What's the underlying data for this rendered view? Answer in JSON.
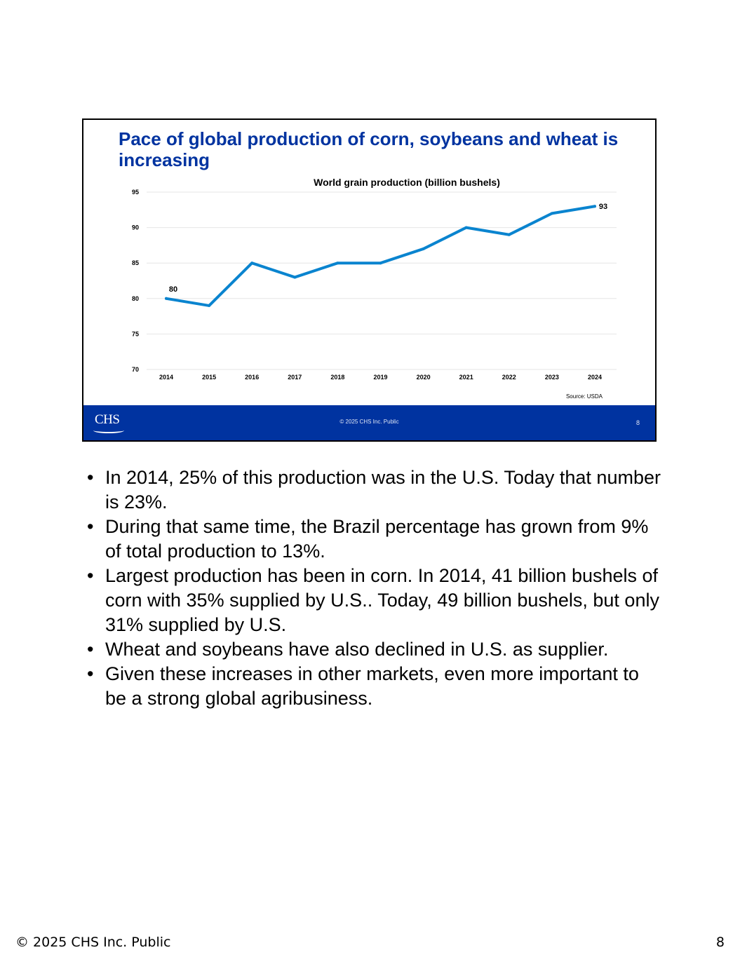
{
  "slide": {
    "title": "Pace of global production of corn, soybeans and wheat is increasing",
    "footer_copyright": "© 2025 CHS Inc. Public",
    "footer_page": "8",
    "logo_text": "CHS",
    "brand_color": "#0033a0"
  },
  "chart_data": {
    "type": "line",
    "title": "World grain production (billion bushels)",
    "categories": [
      "2014",
      "2015",
      "2016",
      "2017",
      "2018",
      "2019",
      "2020",
      "2021",
      "2022",
      "2023",
      "2024"
    ],
    "series": [
      {
        "name": "World grain production",
        "values": [
          80,
          79,
          85,
          83,
          85,
          85,
          87,
          90,
          89,
          92,
          93
        ],
        "color": "#0a84cf"
      }
    ],
    "data_labels": [
      {
        "index": 0,
        "text": "80"
      },
      {
        "index": 10,
        "text": "93"
      }
    ],
    "ylim": [
      70,
      95
    ],
    "yticks": [
      "70",
      "75",
      "80",
      "85",
      "90",
      "95"
    ],
    "grid": true,
    "source": "Source: USDA",
    "xlabel": "",
    "ylabel": ""
  },
  "notes": [
    "In 2014, 25% of this production was in the U.S. Today that number is 23%.",
    "During that same time, the Brazil percentage has grown from 9% of total production to 13%.",
    "Largest production has been in corn. In 2014, 41 billion bushels of corn with 35% supplied by U.S.. Today, 49 billion bushels, but only 31% supplied by U.S.",
    "Wheat and soybeans have also declined in U.S. as supplier.",
    "Given these increases in other markets, even more important to be a strong global agribusiness."
  ],
  "page_footer": {
    "copyright": "© 2025 CHS Inc. Public",
    "page_number": "8"
  }
}
